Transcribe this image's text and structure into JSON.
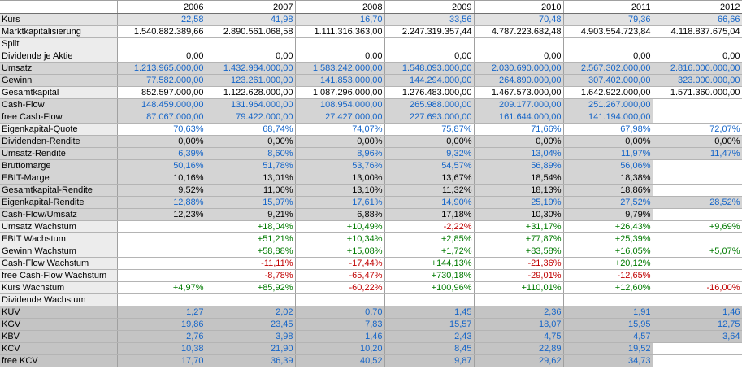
{
  "years": [
    "2006",
    "2007",
    "2008",
    "2009",
    "2010",
    "2011",
    "2012"
  ],
  "rows": [
    {
      "label": "Kurs",
      "bg": "l",
      "cells": [
        [
          "22,58",
          "blue"
        ],
        [
          "41,98",
          "blue"
        ],
        [
          "16,70",
          "blue"
        ],
        [
          "33,56",
          "blue"
        ],
        [
          "70,48",
          "blue"
        ],
        [
          "79,36",
          "blue"
        ],
        [
          "66,66",
          "blue"
        ]
      ]
    },
    {
      "label": "Marktkapitalisierung",
      "bg": "w",
      "cells": [
        [
          "1.540.882.389,66",
          "black"
        ],
        [
          "2.890.561.068,58",
          "black"
        ],
        [
          "1.111.316.363,00",
          "black"
        ],
        [
          "2.247.319.357,44",
          "black"
        ],
        [
          "4.787.223.682,48",
          "black"
        ],
        [
          "4.903.554.723,84",
          "black"
        ],
        [
          "4.118.837.675,04",
          "black"
        ]
      ]
    },
    {
      "label": "Split",
      "bg": "w",
      "cells": [
        [
          "",
          ""
        ],
        [
          "",
          ""
        ],
        [
          "",
          ""
        ],
        [
          "",
          ""
        ],
        [
          "",
          ""
        ],
        [
          "",
          ""
        ],
        [
          "",
          ""
        ]
      ]
    },
    {
      "label": "Dividende je Aktie",
      "bg": "w",
      "cells": [
        [
          "0,00",
          "black"
        ],
        [
          "0,00",
          "black"
        ],
        [
          "0,00",
          "black"
        ],
        [
          "0,00",
          "black"
        ],
        [
          "0,00",
          "black"
        ],
        [
          "0,00",
          "black"
        ],
        [
          "0,00",
          "black"
        ]
      ]
    },
    {
      "label": "Umsatz",
      "bg": "d",
      "cells": [
        [
          "1.213.965.000,00",
          "blue"
        ],
        [
          "1.432.984.000,00",
          "blue"
        ],
        [
          "1.583.242.000,00",
          "blue"
        ],
        [
          "1.548.093.000,00",
          "blue"
        ],
        [
          "2.030.690.000,00",
          "blue"
        ],
        [
          "2.567.302.000,00",
          "blue"
        ],
        [
          "2.816.000.000,00",
          "blue"
        ]
      ]
    },
    {
      "label": "Gewinn",
      "bg": "d",
      "cells": [
        [
          "77.582.000,00",
          "blue"
        ],
        [
          "123.261.000,00",
          "blue"
        ],
        [
          "141.853.000,00",
          "blue"
        ],
        [
          "144.294.000,00",
          "blue"
        ],
        [
          "264.890.000,00",
          "blue"
        ],
        [
          "307.402.000,00",
          "blue"
        ],
        [
          "323.000.000,00",
          "blue"
        ]
      ]
    },
    {
      "label": "Gesamtkapital",
      "bg": "w",
      "cells": [
        [
          "852.597.000,00",
          "black"
        ],
        [
          "1.122.628.000,00",
          "black"
        ],
        [
          "1.087.296.000,00",
          "black"
        ],
        [
          "1.276.483.000,00",
          "black"
        ],
        [
          "1.467.573.000,00",
          "black"
        ],
        [
          "1.642.922.000,00",
          "black"
        ],
        [
          "1.571.360.000,00",
          "black"
        ]
      ]
    },
    {
      "label": "Cash-Flow",
      "bg": "d",
      "cells": [
        [
          "148.459.000,00",
          "blue"
        ],
        [
          "131.964.000,00",
          "blue"
        ],
        [
          "108.954.000,00",
          "blue"
        ],
        [
          "265.988.000,00",
          "blue"
        ],
        [
          "209.177.000,00",
          "blue"
        ],
        [
          "251.267.000,00",
          "blue"
        ],
        [
          "",
          ""
        ]
      ]
    },
    {
      "label": "free Cash-Flow",
      "bg": "d",
      "cells": [
        [
          "87.067.000,00",
          "blue"
        ],
        [
          "79.422.000,00",
          "blue"
        ],
        [
          "27.427.000,00",
          "blue"
        ],
        [
          "227.693.000,00",
          "blue"
        ],
        [
          "161.644.000,00",
          "blue"
        ],
        [
          "141.194.000,00",
          "blue"
        ],
        [
          "",
          ""
        ]
      ]
    },
    {
      "label": "Eigenkapital-Quote",
      "bg": "w",
      "cells": [
        [
          "70,63%",
          "blue"
        ],
        [
          "68,74%",
          "blue"
        ],
        [
          "74,07%",
          "blue"
        ],
        [
          "75,87%",
          "blue"
        ],
        [
          "71,66%",
          "blue"
        ],
        [
          "67,98%",
          "blue"
        ],
        [
          "72,07%",
          "blue"
        ]
      ]
    },
    {
      "label": "Dividenden-Rendite",
      "bg": "d",
      "cells": [
        [
          "0,00%",
          "black"
        ],
        [
          "0,00%",
          "black"
        ],
        [
          "0,00%",
          "black"
        ],
        [
          "0,00%",
          "black"
        ],
        [
          "0,00%",
          "black"
        ],
        [
          "0,00%",
          "black"
        ],
        [
          "0,00%",
          "black"
        ]
      ]
    },
    {
      "label": "Umsatz-Rendite",
      "bg": "d",
      "cells": [
        [
          "6,39%",
          "blue"
        ],
        [
          "8,60%",
          "blue"
        ],
        [
          "8,96%",
          "blue"
        ],
        [
          "9,32%",
          "blue"
        ],
        [
          "13,04%",
          "blue"
        ],
        [
          "11,97%",
          "blue"
        ],
        [
          "11,47%",
          "blue"
        ]
      ]
    },
    {
      "label": "Bruttomarge",
      "bg": "d",
      "cells": [
        [
          "50,16%",
          "blue"
        ],
        [
          "51,78%",
          "blue"
        ],
        [
          "53,76%",
          "blue"
        ],
        [
          "54,57%",
          "blue"
        ],
        [
          "56,89%",
          "blue"
        ],
        [
          "56,06%",
          "blue"
        ],
        [
          "",
          ""
        ]
      ]
    },
    {
      "label": "EBIT-Marge",
      "bg": "d",
      "cells": [
        [
          "10,16%",
          "black"
        ],
        [
          "13,01%",
          "black"
        ],
        [
          "13,00%",
          "black"
        ],
        [
          "13,67%",
          "black"
        ],
        [
          "18,54%",
          "black"
        ],
        [
          "18,38%",
          "black"
        ],
        [
          "",
          ""
        ]
      ]
    },
    {
      "label": "Gesamtkapital-Rendite",
      "bg": "d",
      "cells": [
        [
          "9,52%",
          "black"
        ],
        [
          "11,06%",
          "black"
        ],
        [
          "13,10%",
          "black"
        ],
        [
          "11,32%",
          "black"
        ],
        [
          "18,13%",
          "black"
        ],
        [
          "18,86%",
          "black"
        ],
        [
          "",
          ""
        ]
      ]
    },
    {
      "label": "Eigenkapital-Rendite",
      "bg": "d",
      "cells": [
        [
          "12,88%",
          "blue"
        ],
        [
          "15,97%",
          "blue"
        ],
        [
          "17,61%",
          "blue"
        ],
        [
          "14,90%",
          "blue"
        ],
        [
          "25,19%",
          "blue"
        ],
        [
          "27,52%",
          "blue"
        ],
        [
          "28,52%",
          "blue"
        ]
      ]
    },
    {
      "label": "Cash-Flow/Umsatz",
      "bg": "d",
      "cells": [
        [
          "12,23%",
          "black"
        ],
        [
          "9,21%",
          "black"
        ],
        [
          "6,88%",
          "black"
        ],
        [
          "17,18%",
          "black"
        ],
        [
          "10,30%",
          "black"
        ],
        [
          "9,79%",
          "black"
        ],
        [
          "",
          ""
        ]
      ]
    },
    {
      "label": "Umsatz Wachstum",
      "bg": "w",
      "cells": [
        [
          "",
          ""
        ],
        [
          "+18,04%",
          "green"
        ],
        [
          "+10,49%",
          "green"
        ],
        [
          "-2,22%",
          "red"
        ],
        [
          "+31,17%",
          "green"
        ],
        [
          "+26,43%",
          "green"
        ],
        [
          "+9,69%",
          "green"
        ]
      ]
    },
    {
      "label": "EBIT Wachstum",
      "bg": "w",
      "cells": [
        [
          "",
          ""
        ],
        [
          "+51,21%",
          "green"
        ],
        [
          "+10,34%",
          "green"
        ],
        [
          "+2,85%",
          "green"
        ],
        [
          "+77,87%",
          "green"
        ],
        [
          "+25,39%",
          "green"
        ],
        [
          "",
          ""
        ]
      ]
    },
    {
      "label": "Gewinn Wachstum",
      "bg": "w",
      "cells": [
        [
          "",
          ""
        ],
        [
          "+58,88%",
          "green"
        ],
        [
          "+15,08%",
          "green"
        ],
        [
          "+1,72%",
          "green"
        ],
        [
          "+83,58%",
          "green"
        ],
        [
          "+16,05%",
          "green"
        ],
        [
          "+5,07%",
          "green"
        ]
      ]
    },
    {
      "label": "Cash-Flow Wachstum",
      "bg": "w",
      "cells": [
        [
          "",
          ""
        ],
        [
          "-11,11%",
          "red"
        ],
        [
          "-17,44%",
          "red"
        ],
        [
          "+144,13%",
          "green"
        ],
        [
          "-21,36%",
          "red"
        ],
        [
          "+20,12%",
          "green"
        ],
        [
          "",
          ""
        ]
      ]
    },
    {
      "label": "free Cash-Flow Wachstum",
      "bg": "w",
      "cells": [
        [
          "",
          ""
        ],
        [
          "-8,78%",
          "red"
        ],
        [
          "-65,47%",
          "red"
        ],
        [
          "+730,18%",
          "green"
        ],
        [
          "-29,01%",
          "red"
        ],
        [
          "-12,65%",
          "red"
        ],
        [
          "",
          ""
        ]
      ]
    },
    {
      "label": "Kurs Wachstum",
      "bg": "w",
      "cells": [
        [
          "+4,97%",
          "green"
        ],
        [
          "+85,92%",
          "green"
        ],
        [
          "-60,22%",
          "red"
        ],
        [
          "+100,96%",
          "green"
        ],
        [
          "+110,01%",
          "green"
        ],
        [
          "+12,60%",
          "green"
        ],
        [
          "-16,00%",
          "red"
        ]
      ]
    },
    {
      "label": "Dividende Wachstum",
      "bg": "w",
      "cells": [
        [
          "",
          ""
        ],
        [
          "",
          ""
        ],
        [
          "",
          ""
        ],
        [
          "",
          ""
        ],
        [
          "",
          ""
        ],
        [
          "",
          ""
        ],
        [
          "",
          ""
        ]
      ]
    },
    {
      "label": "KUV",
      "bg": "g",
      "cells": [
        [
          "1,27",
          "blue"
        ],
        [
          "2,02",
          "blue"
        ],
        [
          "0,70",
          "blue"
        ],
        [
          "1,45",
          "blue"
        ],
        [
          "2,36",
          "blue"
        ],
        [
          "1,91",
          "blue"
        ],
        [
          "1,46",
          "blue"
        ]
      ]
    },
    {
      "label": "KGV",
      "bg": "g",
      "cells": [
        [
          "19,86",
          "blue"
        ],
        [
          "23,45",
          "blue"
        ],
        [
          "7,83",
          "blue"
        ],
        [
          "15,57",
          "blue"
        ],
        [
          "18,07",
          "blue"
        ],
        [
          "15,95",
          "blue"
        ],
        [
          "12,75",
          "blue"
        ]
      ]
    },
    {
      "label": "KBV",
      "bg": "g",
      "cells": [
        [
          "2,76",
          "blue"
        ],
        [
          "3,98",
          "blue"
        ],
        [
          "1,46",
          "blue"
        ],
        [
          "2,43",
          "blue"
        ],
        [
          "4,75",
          "blue"
        ],
        [
          "4,57",
          "blue"
        ],
        [
          "3,64",
          "blue"
        ]
      ]
    },
    {
      "label": "KCV",
      "bg": "g",
      "cells": [
        [
          "10,38",
          "blue"
        ],
        [
          "21,90",
          "blue"
        ],
        [
          "10,20",
          "blue"
        ],
        [
          "8,45",
          "blue"
        ],
        [
          "22,89",
          "blue"
        ],
        [
          "19,52",
          "blue"
        ],
        [
          "",
          ""
        ]
      ]
    },
    {
      "label": "free KCV",
      "bg": "g",
      "cells": [
        [
          "17,70",
          "blue"
        ],
        [
          "36,39",
          "blue"
        ],
        [
          "40,52",
          "blue"
        ],
        [
          "9,87",
          "blue"
        ],
        [
          "29,62",
          "blue"
        ],
        [
          "34,73",
          "blue"
        ],
        [
          "",
          ""
        ]
      ]
    }
  ]
}
